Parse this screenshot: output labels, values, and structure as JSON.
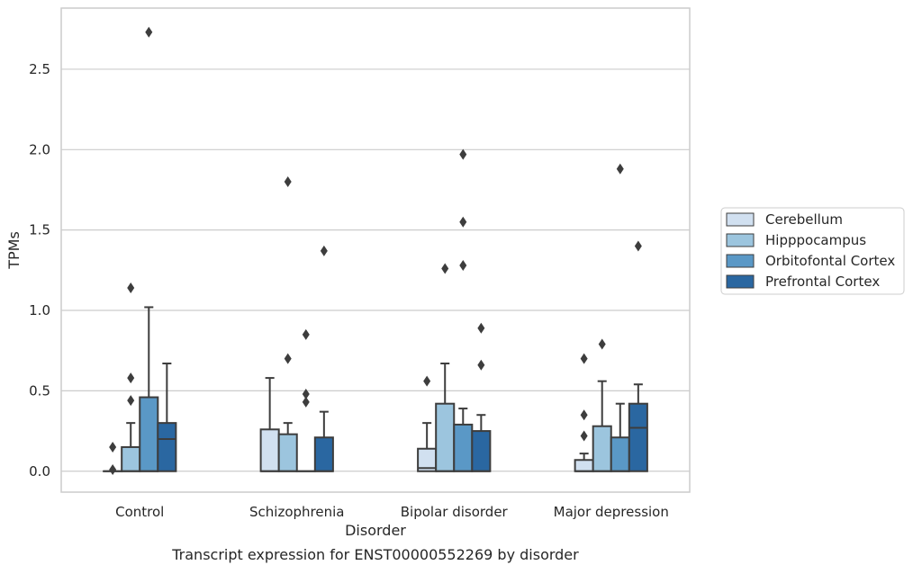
{
  "chart_data": {
    "type": "box",
    "title": "Transcript expression for ENST00000552269 by disorder",
    "xlabel": "Disorder",
    "ylabel": "TPMs",
    "ylim": [
      -0.13,
      2.88
    ],
    "yticks": [
      "0.0",
      "0.5",
      "1.0",
      "1.5",
      "2.0",
      "2.5"
    ],
    "ytick_values": [
      0,
      0.5,
      1.0,
      1.5,
      2.0,
      2.5
    ],
    "grid": true,
    "legend_position": "right",
    "categories": [
      "Control",
      "Schizophrenia",
      "Bipolar disorder",
      "Major depression"
    ],
    "series": [
      {
        "name": "Cerebellum",
        "color": "#d1e0f0",
        "boxes": [
          {
            "whisker_low": 0,
            "q1": 0,
            "median": 0,
            "q3": 0,
            "whisker_high": 0,
            "outliers": [
              0.15,
              0.01
            ]
          },
          {
            "whisker_low": 0,
            "q1": 0,
            "median": 0,
            "q3": 0.26,
            "whisker_high": 0.58,
            "outliers": []
          },
          {
            "whisker_low": 0,
            "q1": 0,
            "median": 0.02,
            "q3": 0.14,
            "whisker_high": 0.3,
            "outliers": [
              0.56
            ]
          },
          {
            "whisker_low": 0,
            "q1": 0,
            "median": 0,
            "q3": 0.07,
            "whisker_high": 0.11,
            "outliers": [
              0.7,
              0.35,
              0.22
            ]
          }
        ]
      },
      {
        "name": "Hipppocampus",
        "color": "#9cc5de",
        "boxes": [
          {
            "whisker_low": 0,
            "q1": 0,
            "median": 0,
            "q3": 0.15,
            "whisker_high": 0.3,
            "outliers": [
              1.14,
              0.58,
              0.44
            ]
          },
          {
            "whisker_low": 0,
            "q1": 0,
            "median": 0,
            "q3": 0.23,
            "whisker_high": 0.3,
            "outliers": [
              1.8,
              0.7
            ]
          },
          {
            "whisker_low": 0,
            "q1": 0,
            "median": 0,
            "q3": 0.42,
            "whisker_high": 0.67,
            "outliers": [
              1.26
            ]
          },
          {
            "whisker_low": 0,
            "q1": 0,
            "median": 0,
            "q3": 0.28,
            "whisker_high": 0.56,
            "outliers": [
              0.79
            ]
          }
        ]
      },
      {
        "name": "Orbitofontal Cortex",
        "color": "#5a98c6",
        "boxes": [
          {
            "whisker_low": 0,
            "q1": 0,
            "median": 0,
            "q3": 0.46,
            "whisker_high": 1.02,
            "outliers": [
              2.73
            ]
          },
          {
            "whisker_low": 0,
            "q1": 0,
            "median": 0,
            "q3": 0,
            "whisker_high": 0,
            "outliers": [
              0.85,
              0.48,
              0.43
            ]
          },
          {
            "whisker_low": 0,
            "q1": 0,
            "median": 0,
            "q3": 0.29,
            "whisker_high": 0.39,
            "outliers": [
              1.97,
              1.55,
              1.28
            ]
          },
          {
            "whisker_low": 0,
            "q1": 0,
            "median": 0,
            "q3": 0.21,
            "whisker_high": 0.42,
            "outliers": [
              1.88
            ]
          }
        ]
      },
      {
        "name": "Prefrontal Cortex",
        "color": "#2a67a1",
        "boxes": [
          {
            "whisker_low": 0,
            "q1": 0,
            "median": 0.2,
            "q3": 0.3,
            "whisker_high": 0.67,
            "outliers": []
          },
          {
            "whisker_low": 0,
            "q1": 0,
            "median": 0,
            "q3": 0.21,
            "whisker_high": 0.37,
            "outliers": [
              1.37
            ]
          },
          {
            "whisker_low": 0,
            "q1": 0,
            "median": 0,
            "q3": 0.25,
            "whisker_high": 0.35,
            "outliers": [
              0.89,
              0.66
            ]
          },
          {
            "whisker_low": 0,
            "q1": 0,
            "median": 0.27,
            "q3": 0.42,
            "whisker_high": 0.54,
            "outliers": [
              1.4
            ]
          }
        ]
      }
    ]
  }
}
